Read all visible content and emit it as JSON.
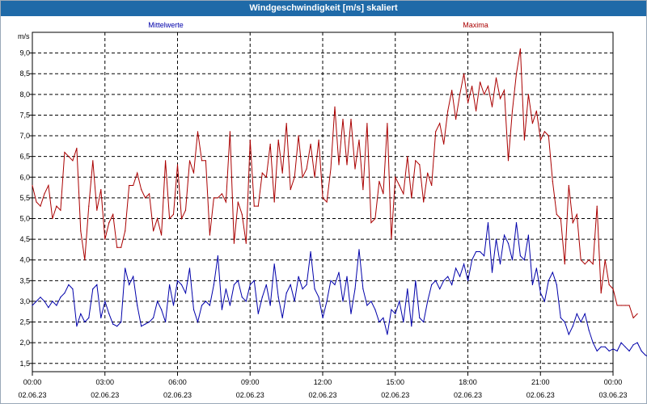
{
  "window": {
    "title": "Windgeschwindigkeit [m/s] skaliert"
  },
  "chart_data": {
    "type": "line",
    "title": "Windgeschwindigkeit [m/s] skaliert",
    "ylabel": "m/s",
    "ylim": [
      1.3,
      9.5
    ],
    "xlim": [
      0,
      24
    ],
    "grid": true,
    "legend_placement": "top",
    "y_ticks": [
      "1,5",
      "2,0",
      "2,5",
      "3,0",
      "3,5",
      "4,0",
      "4,5",
      "5,0",
      "5,5",
      "6,0",
      "6,5",
      "7,0",
      "7,5",
      "8,0",
      "8,5",
      "9,0"
    ],
    "y_tick_values": [
      1.5,
      2.0,
      2.5,
      3.0,
      3.5,
      4.0,
      4.5,
      5.0,
      5.5,
      6.0,
      6.5,
      7.0,
      7.5,
      8.0,
      8.5,
      9.0
    ],
    "x_ticks": [
      {
        "time": "00:00",
        "date": "02.06.23"
      },
      {
        "time": "03:00",
        "date": "02.06.23"
      },
      {
        "time": "06:00",
        "date": "02.06.23"
      },
      {
        "time": "09:00",
        "date": "02.06.23"
      },
      {
        "time": "12:00",
        "date": "02.06.23"
      },
      {
        "time": "15:00",
        "date": "02.06.23"
      },
      {
        "time": "18:00",
        "date": "02.06.23"
      },
      {
        "time": "21:00",
        "date": "02.06.23"
      },
      {
        "time": "00:00",
        "date": "03.06.23"
      }
    ],
    "x_tick_values": [
      0,
      3,
      6,
      9,
      12,
      15,
      18,
      21,
      24
    ],
    "series": [
      {
        "name": "Mittelwerte",
        "color": "#0000aa",
        "x_start": 0,
        "x_step": 0.1667,
        "values": [
          2.9,
          3.0,
          3.1,
          3.0,
          2.85,
          3.0,
          2.9,
          3.1,
          3.2,
          3.4,
          3.3,
          2.4,
          2.7,
          2.5,
          2.6,
          3.3,
          3.4,
          2.6,
          3.0,
          2.7,
          2.45,
          2.4,
          2.5,
          3.8,
          3.4,
          3.6,
          2.9,
          2.4,
          2.45,
          2.5,
          2.6,
          3.0,
          2.8,
          2.5,
          3.4,
          2.9,
          3.5,
          3.4,
          3.2,
          3.8,
          2.8,
          2.5,
          2.9,
          3.0,
          2.9,
          3.4,
          4.1,
          2.8,
          3.3,
          2.9,
          3.4,
          3.5,
          3.1,
          3.0,
          3.4,
          3.5,
          2.7,
          3.1,
          3.4,
          2.9,
          3.9,
          3.1,
          2.6,
          3.2,
          3.4,
          3.0,
          3.6,
          3.3,
          3.4,
          4.2,
          3.3,
          3.1,
          2.6,
          3.0,
          3.5,
          3.4,
          3.7,
          3.0,
          3.6,
          2.7,
          3.3,
          4.25,
          3.3,
          2.9,
          3.0,
          2.8,
          2.5,
          2.6,
          2.2,
          2.8,
          2.7,
          3.0,
          2.5,
          3.3,
          2.4,
          3.5,
          2.6,
          2.5,
          3.0,
          3.4,
          3.5,
          3.3,
          3.5,
          3.6,
          3.4,
          3.8,
          3.6,
          3.9,
          3.5,
          4.0,
          4.2,
          4.2,
          4.1,
          4.9,
          3.7,
          4.5,
          3.9,
          4.6,
          4.4,
          4.0,
          4.9,
          4.1,
          4.0,
          4.6,
          3.4,
          3.8,
          3.2,
          3.0,
          3.5,
          3.7,
          3.4,
          2.6,
          2.5,
          2.2,
          2.4,
          2.7,
          2.5,
          2.7,
          2.3,
          2.0,
          1.8,
          1.9,
          1.9,
          1.8,
          1.85,
          1.8,
          2.0,
          1.9,
          1.8,
          1.95,
          2.0,
          1.8,
          1.7,
          1.65
        ]
      },
      {
        "name": "Maxima",
        "color": "#aa0000",
        "x_start": 0,
        "x_step": 0.1667,
        "values": [
          5.8,
          5.4,
          5.3,
          5.6,
          5.8,
          5.0,
          5.3,
          5.2,
          6.6,
          6.5,
          6.4,
          6.7,
          4.7,
          4.0,
          5.3,
          6.4,
          5.2,
          5.7,
          4.5,
          4.9,
          5.1,
          4.3,
          4.3,
          4.7,
          5.8,
          5.8,
          6.1,
          5.7,
          5.5,
          5.6,
          4.7,
          5.0,
          4.6,
          6.4,
          5.0,
          5.1,
          6.3,
          5.0,
          5.2,
          6.4,
          6.1,
          7.1,
          6.4,
          6.4,
          4.6,
          5.5,
          5.5,
          5.6,
          5.4,
          7.1,
          4.4,
          5.4,
          5.1,
          4.4,
          6.9,
          5.3,
          5.3,
          6.1,
          6.0,
          6.8,
          5.4,
          6.9,
          6.1,
          7.3,
          5.7,
          6.0,
          7.0,
          6.0,
          6.2,
          6.8,
          6.0,
          6.9,
          5.5,
          5.4,
          6.2,
          7.7,
          6.3,
          7.4,
          6.3,
          7.4,
          6.2,
          6.9,
          5.7,
          7.3,
          4.9,
          5.0,
          5.9,
          5.6,
          7.3,
          4.5,
          6.0,
          5.8,
          5.6,
          6.5,
          5.5,
          6.4,
          6.3,
          5.4,
          6.1,
          5.8,
          7.1,
          7.3,
          6.8,
          7.6,
          8.1,
          7.4,
          8.0,
          8.5,
          7.8,
          8.2,
          7.6,
          8.3,
          8.0,
          8.2,
          7.7,
          8.4,
          7.9,
          8.1,
          6.4,
          7.6,
          8.5,
          9.1,
          6.9,
          8.0,
          7.3,
          7.6,
          6.9,
          7.1,
          7.0,
          5.9,
          5.1,
          5.0,
          3.9,
          5.8,
          4.9,
          5.1,
          4.0,
          3.9,
          4.0,
          3.9,
          5.3,
          3.2,
          4.0,
          3.4,
          3.3,
          2.9,
          2.9,
          2.9,
          2.9,
          2.6,
          2.7
        ]
      }
    ]
  }
}
